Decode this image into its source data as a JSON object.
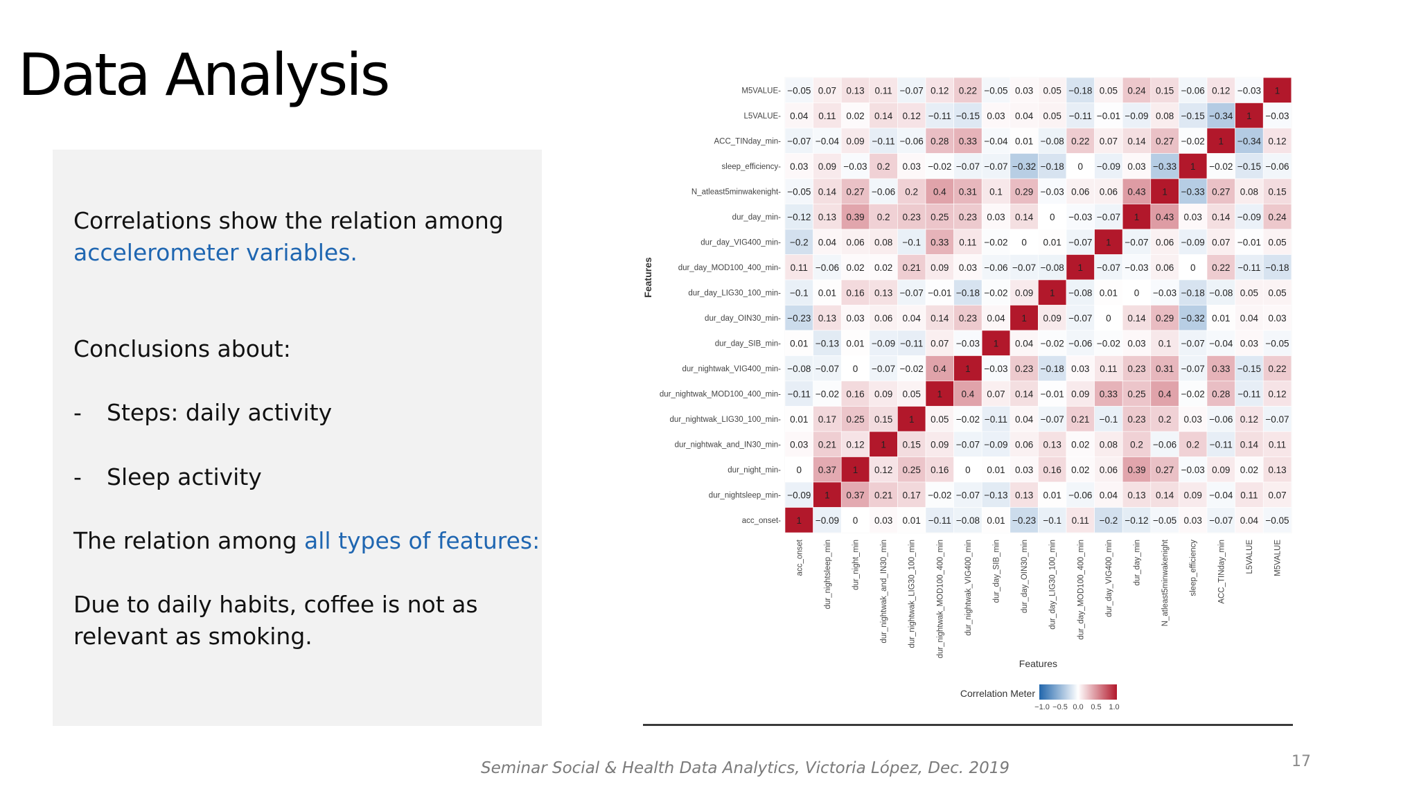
{
  "slide": {
    "title": "Data Analysis",
    "panel": {
      "line1": "Correlations show the relation among",
      "line2_highlight": "accelerometer variables.",
      "conclusions": "Conclusions about:",
      "bullet_dash": "-",
      "bullet1": "Steps: daily activity",
      "bullet2": "Sleep activity",
      "relation_prefix": "The relation among ",
      "relation_highlight": "all types of features:",
      "habits_line1": "Due to daily habits, coffee is not as",
      "habits_line2": "relevant as smoking."
    },
    "footer": "Seminar Social & Health Data Analytics, Victoria López, Dec. 2019",
    "page_number": "17"
  },
  "chart_data": {
    "type": "heatmap",
    "title": "",
    "xlabel": "Features",
    "ylabel": "Features",
    "y_labels_top_to_bottom": [
      "M5VALUE",
      "L5VALUE",
      "ACC_TINday_min",
      "sleep_efficiency",
      "N_atleast5minwakenight",
      "dur_day_min",
      "dur_day_VIG400_min",
      "dur_day_MOD100_400_min",
      "dur_day_LIG30_100_min",
      "dur_day_OIN30_min",
      "dur_day_SIB_min",
      "dur_nightwak_VIG400_min",
      "dur_nightwak_MOD100_400_min",
      "dur_nightwak_LIG30_100_min",
      "dur_nightwak_and_IN30_min",
      "dur_night_min",
      "dur_nightsleep_min",
      "acc_onset"
    ],
    "x_labels_left_to_right": [
      "acc_onset",
      "dur_nightsleep_min",
      "dur_night_min",
      "dur_nightwak_and_IN30_min",
      "dur_nightwak_LIG30_100_min",
      "dur_nightwak_MOD100_400_min",
      "dur_nightwak_VIG400_min",
      "dur_day_SIB_min",
      "dur_day_OIN30_min",
      "dur_day_LIG30_100_min",
      "dur_day_MOD100_400_min",
      "dur_day_VIG400_min",
      "dur_day_min",
      "N_atleast5minwakenight",
      "sleep_efficiency",
      "ACC_TINday_min",
      "L5VALUE",
      "M5VALUE"
    ],
    "matrix_rows_top_to_bottom": [
      [
        "−0.05",
        "0.07",
        "0.13",
        "0.11",
        "−0.07",
        "0.12",
        "0.22",
        "−0.05",
        "0.03",
        "0.05",
        "−0.18",
        "0.05",
        "0.24",
        "0.15",
        "−0.06",
        "0.12",
        "−0.03",
        "1"
      ],
      [
        "0.04",
        "0.11",
        "0.02",
        "0.14",
        "0.12",
        "−0.11",
        "−0.15",
        "0.03",
        "0.04",
        "0.05",
        "−0.11",
        "−0.01",
        "−0.09",
        "0.08",
        "−0.15",
        "−0.34",
        "1",
        "−0.03"
      ],
      [
        "−0.07",
        "−0.04",
        "0.09",
        "−0.11",
        "−0.06",
        "0.28",
        "0.33",
        "−0.04",
        "0.01",
        "−0.08",
        "0.22",
        "0.07",
        "0.14",
        "0.27",
        "−0.02",
        "1",
        "−0.34",
        "0.12"
      ],
      [
        "0.03",
        "0.09",
        "−0.03",
        "0.2",
        "0.03",
        "−0.02",
        "−0.07",
        "−0.07",
        "−0.32",
        "−0.18",
        "0",
        "−0.09",
        "0.03",
        "−0.33",
        "1",
        "−0.02",
        "−0.15",
        "−0.06"
      ],
      [
        "−0.05",
        "0.14",
        "0.27",
        "−0.06",
        "0.2",
        "0.4",
        "0.31",
        "0.1",
        "0.29",
        "−0.03",
        "0.06",
        "0.06",
        "0.43",
        "1",
        "−0.33",
        "0.27",
        "0.08",
        "0.15"
      ],
      [
        "−0.12",
        "0.13",
        "0.39",
        "0.2",
        "0.23",
        "0.25",
        "0.23",
        "0.03",
        "0.14",
        "0",
        "−0.03",
        "−0.07",
        "1",
        "0.43",
        "0.03",
        "0.14",
        "−0.09",
        "0.24"
      ],
      [
        "−0.2",
        "0.04",
        "0.06",
        "0.08",
        "−0.1",
        "0.33",
        "0.11",
        "−0.02",
        "0",
        "0.01",
        "−0.07",
        "1",
        "−0.07",
        "0.06",
        "−0.09",
        "0.07",
        "−0.01",
        "0.05"
      ],
      [
        "0.11",
        "−0.06",
        "0.02",
        "0.02",
        "0.21",
        "0.09",
        "0.03",
        "−0.06",
        "−0.07",
        "−0.08",
        "1",
        "−0.07",
        "−0.03",
        "0.06",
        "0",
        "0.22",
        "−0.11",
        "−0.18"
      ],
      [
        "−0.1",
        "0.01",
        "0.16",
        "0.13",
        "−0.07",
        "−0.01",
        "−0.18",
        "−0.02",
        "0.09",
        "1",
        "−0.08",
        "0.01",
        "0",
        "−0.03",
        "−0.18",
        "−0.08",
        "0.05",
        "0.05"
      ],
      [
        "−0.23",
        "0.13",
        "0.03",
        "0.06",
        "0.04",
        "0.14",
        "0.23",
        "0.04",
        "1",
        "0.09",
        "−0.07",
        "0",
        "0.14",
        "0.29",
        "−0.32",
        "0.01",
        "0.04",
        "0.03"
      ],
      [
        "0.01",
        "−0.13",
        "0.01",
        "−0.09",
        "−0.11",
        "0.07",
        "−0.03",
        "1",
        "0.04",
        "−0.02",
        "−0.06",
        "−0.02",
        "0.03",
        "0.1",
        "−0.07",
        "−0.04",
        "0.03",
        "−0.05"
      ],
      [
        "−0.08",
        "−0.07",
        "0",
        "−0.07",
        "−0.02",
        "0.4",
        "1",
        "−0.03",
        "0.23",
        "−0.18",
        "0.03",
        "0.11",
        "0.23",
        "0.31",
        "−0.07",
        "0.33",
        "−0.15",
        "0.22"
      ],
      [
        "−0.11",
        "−0.02",
        "0.16",
        "0.09",
        "0.05",
        "1",
        "0.4",
        "0.07",
        "0.14",
        "−0.01",
        "0.09",
        "0.33",
        "0.25",
        "0.4",
        "−0.02",
        "0.28",
        "−0.11",
        "0.12"
      ],
      [
        "0.01",
        "0.17",
        "0.25",
        "0.15",
        "1",
        "0.05",
        "−0.02",
        "−0.11",
        "0.04",
        "−0.07",
        "0.21",
        "−0.1",
        "0.23",
        "0.2",
        "0.03",
        "−0.06",
        "0.12",
        "−0.07"
      ],
      [
        "0.03",
        "0.21",
        "0.12",
        "1",
        "0.15",
        "0.09",
        "−0.07",
        "−0.09",
        "0.06",
        "0.13",
        "0.02",
        "0.08",
        "0.2",
        "−0.06",
        "0.2",
        "−0.11",
        "0.14",
        "0.11"
      ],
      [
        "0",
        "0.37",
        "1",
        "0.12",
        "0.25",
        "0.16",
        "0",
        "0.01",
        "0.03",
        "0.16",
        "0.02",
        "0.06",
        "0.39",
        "0.27",
        "−0.03",
        "0.09",
        "0.02",
        "0.13"
      ],
      [
        "−0.09",
        "1",
        "0.37",
        "0.21",
        "0.17",
        "−0.02",
        "−0.07",
        "−0.13",
        "0.13",
        "0.01",
        "−0.06",
        "0.04",
        "0.13",
        "0.14",
        "0.09",
        "−0.04",
        "0.11",
        "0.07"
      ],
      [
        "1",
        "−0.09",
        "0",
        "0.03",
        "0.01",
        "−0.11",
        "−0.08",
        "0.01",
        "−0.23",
        "−0.1",
        "0.11",
        "−0.2",
        "−0.12",
        "−0.05",
        "0.03",
        "−0.07",
        "0.04",
        "−0.05"
      ]
    ],
    "colorscale": {
      "low": "#2166ac",
      "mid": "#ffffff",
      "high": "#b2182b"
    },
    "legend": {
      "title": "Correlation Meter",
      "ticks": [
        "−1.0",
        "−0.5",
        "0.0",
        "0.5",
        "1.0"
      ],
      "placement": "bottom-center"
    },
    "grid": false
  }
}
